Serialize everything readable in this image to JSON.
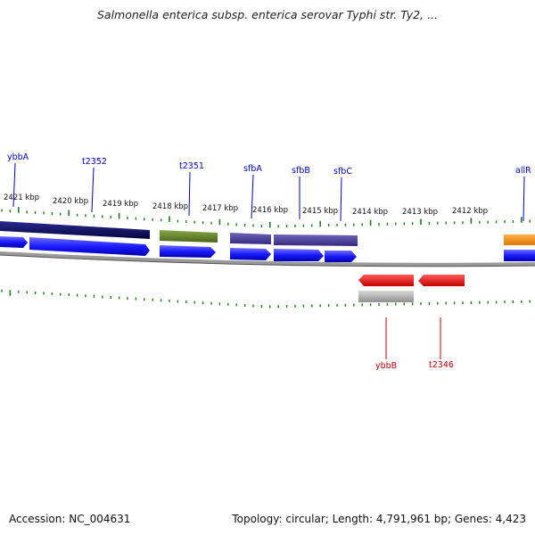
{
  "title": "Salmonella enterica subsp. enterica serovar Typhi str. Ty2, ...",
  "footer": {
    "accession": "Accession: NC_004631",
    "topology": "Topology: circular; Length: 4,791,961 bp; Genes: 4,423"
  },
  "ticks": [
    "2421 kbp",
    "2420 kbp",
    "2419 kbp",
    "2418 kbp",
    "2417 kbp",
    "2416 kbp",
    "2415 kbp",
    "2414 kbp",
    "2413 kbp",
    "2412 kbp"
  ],
  "genes_upper": [
    "ybbA",
    "t2352",
    "t2351",
    "sfbA",
    "sfbB",
    "sfbC",
    "allR"
  ],
  "genes_lower": [
    "ybbB",
    "t2346"
  ],
  "colors": {
    "upper_label": "#0000cc",
    "lower_label": "#cc0000",
    "cds_blue": "#1a1aff",
    "navy": "#0a0a6e",
    "olive": "#5c7a1e",
    "slate": "#4a3f9a",
    "orange": "#ff8c00",
    "red": "#ee0000",
    "gray": "#b0b0b0",
    "tick_green": "#1f7a1f",
    "backbone": "#888888"
  }
}
